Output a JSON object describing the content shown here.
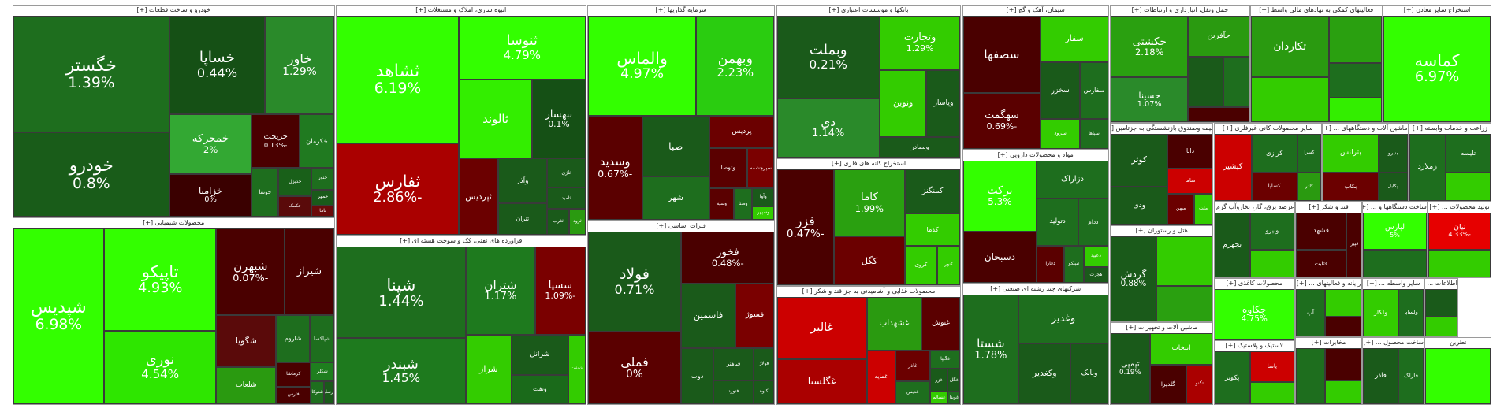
{
  "sectors": [
    {
      "title": "خودرو و ساخت قطعات [+]",
      "tiles": [
        {
          "name": "خگستر",
          "change": "1.39%",
          "color": "#1e6e1e"
        },
        {
          "name": "خودرو",
          "change": "0.8%",
          "color": "#195c19"
        },
        {
          "name": "خساپا",
          "change": "0.44%",
          "color": "#155015"
        },
        {
          "name": "خاور",
          "change": "1.29%",
          "color": "#2a8a2a"
        },
        {
          "name": "خمحرکه",
          "change": "2%",
          "color": "#33a833"
        },
        {
          "name": "خزامیا",
          "change": "0%",
          "color": "#3a0000"
        },
        {
          "name": "خریخت",
          "change": "-0.13%",
          "color": "#4a0000"
        },
        {
          "name": "خکرمان",
          "color": "#207a20"
        },
        {
          "name": "خوتقا",
          "color": "#1e6e1e"
        },
        {
          "name": "خدیزل",
          "color": "#196019"
        },
        {
          "name": "خکمک",
          "color": "#5a0a0a"
        },
        {
          "name": "خنور",
          "color": "#1e6e1e"
        },
        {
          "name": "خمهر",
          "color": "#1a5a1a"
        },
        {
          "name": "ناما",
          "color": "#6b0a0a"
        }
      ]
    },
    {
      "title": "محصولات شیمیایی [+]",
      "tiles": [
        {
          "name": "شپدیس",
          "change": "6.98%",
          "color": "#33ff00"
        },
        {
          "name": "تاپیکو",
          "change": "4.93%",
          "color": "#33ff00"
        },
        {
          "name": "نوری",
          "change": "4.54%",
          "color": "#2ee600"
        },
        {
          "name": "شبهرن",
          "change": "-0.07%",
          "color": "#4a0000"
        },
        {
          "name": "شیراز",
          "color": "#4a0000"
        },
        {
          "name": "شگویا",
          "color": "#5a0a0a"
        },
        {
          "name": "شلعاب",
          "color": "#2a9a10"
        },
        {
          "name": "شاروم",
          "color": "#1e6e1e"
        },
        {
          "name": "شپاکسا",
          "color": "#1e6e1e"
        },
        {
          "name": "کرماشا",
          "color": "#4a0000"
        },
        {
          "name": "فارس",
          "color": "#4a0000"
        },
        {
          "name": "شکلر",
          "color": "#1e7e1e"
        },
        {
          "name": "شتوکا",
          "color": "#1e6e1e"
        },
        {
          "name": "پارسان",
          "color": "#1a5a1a"
        }
      ]
    },
    {
      "title": "انبوه سازی، املاک و مستغلات [+]",
      "tiles": [
        {
          "name": "ثشاهد",
          "change": "6.19%",
          "color": "#33ff00"
        },
        {
          "name": "ثفارس",
          "change": "-2.86%",
          "color": "#aa0000"
        },
        {
          "name": "ثنوسا",
          "change": "4.79%",
          "color": "#33ff00"
        },
        {
          "name": "ثالوند",
          "color": "#33ee00"
        },
        {
          "name": "ثبهساز",
          "change": "0.1%",
          "color": "#155015"
        },
        {
          "name": "ثپردیس",
          "color": "#6b0000"
        },
        {
          "name": "وآذر",
          "color": "#1a5a1a"
        },
        {
          "name": "ثتران",
          "color": "#1a5a1a"
        },
        {
          "name": "ثاژن",
          "color": "#1a5a1a"
        },
        {
          "name": "ثامید",
          "color": "#1a5a1a"
        },
        {
          "name": "ثغرب",
          "color": "#1a5a1a"
        },
        {
          "name": "ثرود",
          "color": "#2a9a10"
        }
      ]
    },
    {
      "title": "فراورده های نفتی، کک و سوخت هسته ای [+]",
      "tiles": [
        {
          "name": "شپنا",
          "change": "1.44%",
          "color": "#1e6e1e"
        },
        {
          "name": "شبندر",
          "change": "1.45%",
          "color": "#1e7a1e"
        },
        {
          "name": "شتران",
          "change": "1.17%",
          "color": "#1e7a1e"
        },
        {
          "name": "شسپا",
          "change": "-1.09%",
          "color": "#7a0000"
        },
        {
          "name": "شراز",
          "color": "#33cc00"
        },
        {
          "name": "شرانل",
          "color": "#1a5a1a"
        },
        {
          "name": "ونفت",
          "color": "#1a6a1a"
        },
        {
          "name": "شنفت",
          "color": "#33cc00"
        }
      ]
    },
    {
      "title": "سرمایه گذاریها [+]",
      "tiles": [
        {
          "name": "والماس",
          "change": "4.97%",
          "color": "#33ff00"
        },
        {
          "name": "وبهمن",
          "change": "2.23%",
          "color": "#2acc10"
        },
        {
          "name": "وسدید",
          "change": "-0.67%",
          "color": "#5a0000"
        },
        {
          "name": "صبا",
          "color": "#1a5a1a"
        },
        {
          "name": "شهر",
          "color": "#1e6e1e"
        },
        {
          "name": "پردیس",
          "color": "#6b0000"
        },
        {
          "name": "وتوصا",
          "color": "#5a0000"
        },
        {
          "name": "سپرچشمه",
          "color": "#7a0000"
        },
        {
          "name": "وسپه",
          "color": "#5a0000"
        },
        {
          "name": "وصنا",
          "color": "#1e6e1e"
        },
        {
          "name": "وآوا",
          "color": "#1a5a1a"
        },
        {
          "name": "وسپهر",
          "color": "#33cc00"
        }
      ]
    },
    {
      "title": "فلزات اساسی [+]",
      "tiles": [
        {
          "name": "فولاد",
          "change": "0.71%",
          "color": "#1a5a1a"
        },
        {
          "name": "فملی",
          "change": "0%",
          "color": "#5a0000"
        },
        {
          "name": "فخوز",
          "change": "-0.48%",
          "color": "#4a0000"
        },
        {
          "name": "فاسمین",
          "color": "#1a5a1a"
        },
        {
          "name": "فسوژ",
          "color": "#7a0000"
        },
        {
          "name": "ذوب",
          "color": "#1a5a1a"
        },
        {
          "name": "فباهنر",
          "color": "#1a5a1a"
        },
        {
          "name": "فنورد",
          "color": "#1a5a1a"
        },
        {
          "name": "فولاژ",
          "color": "#1a5a1a"
        },
        {
          "name": "کاوه",
          "color": "#1a5a1a"
        }
      ]
    },
    {
      "title": "بانکها و موسسات اعتباری [+]",
      "tiles": [
        {
          "name": "وبملت",
          "change": "0.21%",
          "color": "#1a5a1a"
        },
        {
          "name": "دی",
          "change": "1.14%",
          "color": "#2a8a2a"
        },
        {
          "name": "وتجارت",
          "change": "1.29%",
          "color": "#33cc00"
        },
        {
          "name": "ونوین",
          "color": "#33cc00"
        },
        {
          "name": "وپاسار",
          "color": "#1a5a1a"
        },
        {
          "name": "وبصادر",
          "color": "#1a5a1a"
        }
      ]
    },
    {
      "title": "استخراج کانه های فلزی [+]",
      "tiles": [
        {
          "name": "فزر",
          "change": "-0.47%",
          "color": "#4a0000"
        },
        {
          "name": "کاما",
          "change": "1.99%",
          "color": "#2aa010"
        },
        {
          "name": "کگل",
          "color": "#6b0000"
        },
        {
          "name": "کمنگنز",
          "color": "#1a5a1a"
        },
        {
          "name": "کدما",
          "color": "#33cc00"
        },
        {
          "name": "کروی",
          "color": "#33cc00"
        },
        {
          "name": "کنور",
          "color": "#33cc00"
        }
      ]
    },
    {
      "title": "محصولات غذایی و آشامیدنی به جز قند و شکر [+]",
      "tiles": [
        {
          "name": "غالبر",
          "color": "#cc0000"
        },
        {
          "name": "غگلستا",
          "color": "#aa0000"
        },
        {
          "name": "غشهداب",
          "color": "#2a9a10"
        },
        {
          "name": "غنوش",
          "color": "#5a0000"
        },
        {
          "name": "غمایه",
          "color": "#cc0000"
        },
        {
          "name": "غاذر",
          "color": "#6b0000"
        },
        {
          "name": "غدیس",
          "color": "#1e6e1e"
        },
        {
          "name": "غگلپا",
          "color": "#1e6e1e"
        },
        {
          "name": "غزر",
          "color": "#1a5a1a"
        },
        {
          "name": "غگل",
          "color": "#1a5a1a"
        },
        {
          "name": "غسالم",
          "color": "#33cc00"
        },
        {
          "name": "غویتا",
          "color": "#1e6e1e"
        }
      ]
    },
    {
      "title": "سیمان، آهک و گچ [+]",
      "tiles": [
        {
          "name": "سصفها",
          "color": "#4a0000"
        },
        {
          "name": "سهگمت",
          "change": "-0.69%",
          "color": "#5a0000"
        },
        {
          "name": "سفار",
          "color": "#33cc00"
        },
        {
          "name": "سخزر",
          "color": "#1a5a1a"
        },
        {
          "name": "سفارس",
          "color": "#1e6e1e"
        },
        {
          "name": "سرود",
          "color": "#33cc00"
        },
        {
          "name": "سپاها",
          "color": "#1e6e1e"
        }
      ]
    },
    {
      "title": "مواد و محصولات دارویی [+]",
      "tiles": [
        {
          "name": "برکت",
          "change": "5.3%",
          "color": "#33ff00"
        },
        {
          "name": "دسبحان",
          "color": "#4a0000"
        },
        {
          "name": "دزاراک",
          "color": "#1e6e1e"
        },
        {
          "name": "دتولید",
          "color": "#1e6e1e"
        },
        {
          "name": "ددام",
          "color": "#1e6e1e"
        },
        {
          "name": "دفارا",
          "color": "#5a0000"
        },
        {
          "name": "تیپیکو",
          "color": "#1e6e1e"
        },
        {
          "name": "دعبید",
          "color": "#33cc00"
        },
        {
          "name": "هجرت",
          "color": "#1a5a1a"
        }
      ]
    },
    {
      "title": "شرکتهای چند رشته ای صنعتی [+]",
      "tiles": [
        {
          "name": "شستا",
          "change": "1.78%",
          "color": "#1e6e1e"
        },
        {
          "name": "وغدیر",
          "color": "#1e6e1e"
        },
        {
          "name": "وکغدیر",
          "color": "#1a5a1a"
        },
        {
          "name": "وبانک",
          "color": "#1a5a1a"
        }
      ]
    },
    {
      "title": "حمل ونقل، انبارداری و ارتباطات [+]",
      "tiles": [
        {
          "name": "حکشتی",
          "change": "2.18%",
          "color": "#2aa010"
        },
        {
          "name": "حسینا",
          "change": "1.07%",
          "color": "#2a8a2a"
        },
        {
          "name": "حآفرین",
          "color": "#2a9a10"
        },
        {
          "color": "#1a5a1a"
        },
        {
          "color": "#1e6e1e"
        },
        {
          "color": "#4a0000"
        }
      ]
    },
    {
      "title": "فعالیتهای کمکی به نهادهای مالی واسط [+]",
      "tiles": [
        {
          "name": "تکاردان",
          "color": "#2a9a10"
        },
        {
          "color": "#33cc00"
        },
        {
          "color": "#2aa010"
        },
        {
          "color": "#1e6e1e"
        },
        {
          "color": "#33ee00"
        }
      ]
    },
    {
      "title": "استخراج سایر معادن [+]",
      "tiles": [
        {
          "name": "کماسه",
          "change": "6.97%",
          "color": "#33ff00"
        }
      ]
    },
    {
      "title": "بیمه وصندوق بازنشستگی به جزتامین [+]",
      "tiles": [
        {
          "name": "کوثر",
          "color": "#1a5a1a"
        },
        {
          "name": "ودی",
          "color": "#1a5a1a"
        },
        {
          "name": "دانا",
          "color": "#4a0000"
        },
        {
          "name": "ساما",
          "color": "#cc0000"
        },
        {
          "name": "میهن",
          "color": "#6b0000"
        },
        {
          "name": "ملت",
          "color": "#33cc00"
        }
      ]
    },
    {
      "title": "هتل و رستوران [+]",
      "tiles": [
        {
          "name": "گردش",
          "change": "0.88%",
          "color": "#1a5a1a"
        },
        {
          "color": "#33cc00"
        },
        {
          "color": "#2aa010"
        }
      ]
    },
    {
      "title": "ماشین آلات و تجهیزات [+]",
      "tiles": [
        {
          "name": "تپمپی",
          "change": "0.19%",
          "color": "#1a5a1a"
        },
        {
          "name": "انتخاب",
          "color": "#33cc00"
        },
        {
          "name": "گلدیرا",
          "color": "#4a0000"
        },
        {
          "name": "تکنو",
          "color": "#aa0000"
        }
      ]
    },
    {
      "title": "سایر محصولات کانی غیرفلزی [+]",
      "tiles": [
        {
          "name": "کپشیر",
          "color": "#cc0000"
        },
        {
          "name": "کرازی",
          "color": "#1e6e1e"
        },
        {
          "name": "کساپا",
          "color": "#6b0000"
        },
        {
          "name": "کسرا",
          "color": "#1e6e1e"
        },
        {
          "name": "کادر",
          "color": "#2a9a10"
        }
      ]
    },
    {
      "title": "ماشین آلات و دستگاههای ... [+]",
      "tiles": [
        {
          "name": "بترانس",
          "color": "#33cc00"
        },
        {
          "name": "بکاب",
          "color": "#6b0000"
        },
        {
          "name": "بنیرو",
          "color": "#1a5a1a"
        },
        {
          "name": "پکابل",
          "color": "#1a5a1a"
        }
      ]
    },
    {
      "title": "زراعت و خدمات وابسته [+]",
      "tiles": [
        {
          "name": "زملارد",
          "color": "#1e6e1e"
        },
        {
          "name": "تلیسه",
          "color": "#1e6e1e"
        },
        {
          "color": "#33cc00"
        }
      ]
    },
    {
      "title": "عرضه برق، گاز، بخاروآب گرم [+]",
      "tiles": [
        {
          "name": "بجهرم",
          "color": "#1a5a1a"
        },
        {
          "name": "ونیرو",
          "color": "#1e6e1e"
        },
        {
          "color": "#33cc00"
        }
      ]
    },
    {
      "title": "قند و شکر [+]",
      "tiles": [
        {
          "name": "قشهد",
          "color": "#4a0000"
        },
        {
          "name": "قثابت",
          "color": "#4a0000"
        },
        {
          "name": "قپیرا",
          "color": "#4a0000"
        }
      ]
    },
    {
      "title": "ساخت دستگاهها و ... [+]",
      "tiles": [
        {
          "name": "لپارس",
          "change": "5%",
          "color": "#33ff00"
        },
        {
          "color": "#1e6e1e"
        }
      ]
    },
    {
      "title": "تولید محصولات ... [+]",
      "tiles": [
        {
          "name": "نیان",
          "change": "-4.33%",
          "color": "#e60000"
        },
        {
          "color": "#33cc00"
        }
      ]
    },
    {
      "title": "محصولات کاغذی [+]",
      "tiles": [
        {
          "name": "چکاوه",
          "change": "4.75%",
          "color": "#33ff00"
        }
      ]
    },
    {
      "title": "لاستیک و پلاستیک [+]",
      "tiles": [
        {
          "name": "پکویر",
          "color": "#1e6e1e"
        },
        {
          "name": "پاسا",
          "color": "#cc0000"
        },
        {
          "color": "#33cc00"
        }
      ]
    },
    {
      "title": "رایانه و فعالیتهای ... [+]",
      "tiles": [
        {
          "name": "آپ",
          "color": "#1e6e1e"
        },
        {
          "color": "#33cc00"
        },
        {
          "color": "#4a0000"
        }
      ]
    },
    {
      "title": "ساير واسطه ... [+]",
      "tiles": [
        {
          "name": "ولکار",
          "color": "#33cc00"
        },
        {
          "name": "ولساپا",
          "color": "#1e6e1e"
        }
      ]
    },
    {
      "title": "اطلاعات ... [+]",
      "tiles": [
        {
          "color": "#1a5a1a"
        },
        {
          "color": "#33cc00"
        }
      ]
    },
    {
      "title": "مخابرات [+]",
      "tiles": [
        {
          "color": "#1e6e1e"
        },
        {
          "color": "#4a0000"
        },
        {
          "color": "#33cc00"
        }
      ]
    },
    {
      "title": "ساخت محصول ... [+]",
      "tiles": [
        {
          "name": "فاذر",
          "color": "#1a5a1a"
        },
        {
          "name": "فاراک",
          "color": "#1e6e1e"
        }
      ]
    },
    {
      "title": "نطرین",
      "tiles": [
        {
          "color": "#33ff00"
        }
      ]
    }
  ]
}
